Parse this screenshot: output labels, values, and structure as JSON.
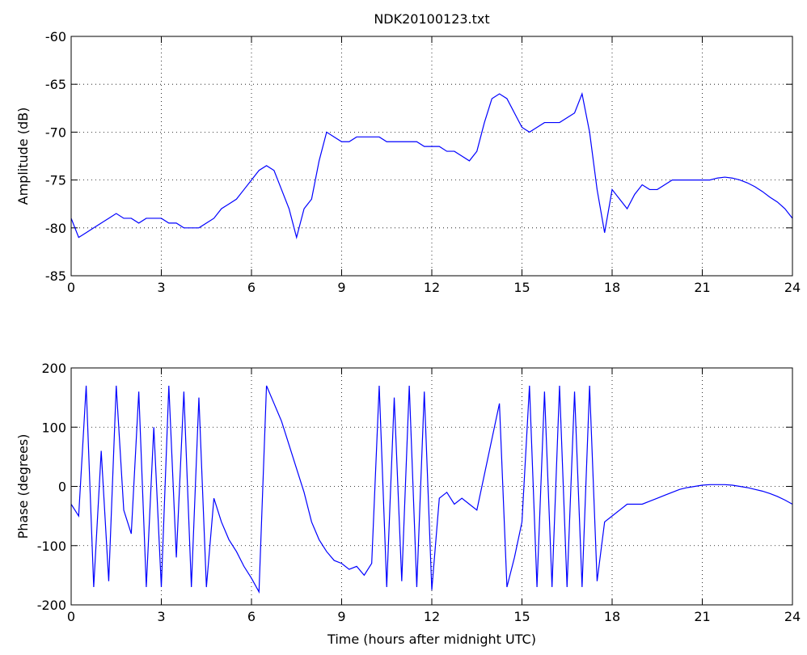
{
  "chart_data": [
    {
      "type": "line",
      "title": "NDK20100123.txt",
      "ylabel": "Amplitude (dB)",
      "color": "#0000ff",
      "grid": true,
      "xlim": [
        0,
        24
      ],
      "xticks": [
        0,
        3,
        6,
        9,
        12,
        15,
        18,
        21,
        24
      ],
      "ylim": [
        -85,
        -60
      ],
      "yticks": [
        -85,
        -80,
        -75,
        -70,
        -65,
        -60
      ],
      "x": [
        0,
        0.25,
        0.5,
        0.75,
        1,
        1.25,
        1.5,
        1.75,
        2,
        2.25,
        2.5,
        2.75,
        3,
        3.25,
        3.5,
        3.75,
        4,
        4.25,
        4.5,
        4.75,
        5,
        5.25,
        5.5,
        5.75,
        6,
        6.25,
        6.5,
        6.75,
        7,
        7.25,
        7.5,
        7.75,
        8,
        8.25,
        8.5,
        8.75,
        9,
        9.25,
        9.5,
        9.75,
        10,
        10.25,
        10.5,
        10.75,
        11,
        11.25,
        11.5,
        11.75,
        12,
        12.25,
        12.5,
        12.75,
        13,
        13.25,
        13.5,
        13.75,
        14,
        14.25,
        14.5,
        14.75,
        15,
        15.25,
        15.5,
        15.75,
        16,
        16.25,
        16.5,
        16.75,
        17,
        17.25,
        17.5,
        17.75,
        18,
        18.25,
        18.5,
        18.75,
        19,
        19.25,
        19.5,
        19.75,
        20,
        20.25,
        20.5,
        20.75,
        21,
        21.25,
        21.5,
        21.75,
        22,
        22.25,
        22.5,
        22.75,
        23,
        23.25,
        23.5,
        23.75,
        24
      ],
      "values": [
        -79,
        -81,
        -80.5,
        -80,
        -79.5,
        -79,
        -78.5,
        -79,
        -79,
        -79.5,
        -79,
        -79,
        -79,
        -79.5,
        -79.5,
        -80,
        -80,
        -80,
        -79.5,
        -79,
        -78,
        -77.5,
        -77,
        -76,
        -75,
        -74,
        -73.5,
        -74,
        -76,
        -78,
        -81,
        -78,
        -77,
        -73,
        -70,
        -70.5,
        -71,
        -71,
        -70.5,
        -70.5,
        -70.5,
        -70.5,
        -71,
        -71,
        -71,
        -71,
        -71,
        -71.5,
        -71.5,
        -71.5,
        -72,
        -72,
        -72.5,
        -73,
        -72,
        -69,
        -66.5,
        -66,
        -66.5,
        -68,
        -69.5,
        -70,
        -69.5,
        -69,
        -69,
        -69,
        -68.5,
        -68,
        -66,
        -70,
        -76,
        -80.5,
        -76,
        -77,
        -78,
        -76.5,
        -75.5,
        -76,
        -76,
        -75.5,
        -75,
        -75,
        -75,
        -75,
        -75,
        -75,
        -74.8,
        -74.7,
        -74.8,
        -75,
        -75.3,
        -75.7,
        -76.2,
        -76.8,
        -77.3,
        -78,
        -79
      ]
    },
    {
      "type": "line",
      "ylabel": "Phase (degrees)",
      "xlabel": "Time (hours after midnight UTC)",
      "color": "#0000ff",
      "grid": true,
      "xlim": [
        0,
        24
      ],
      "xticks": [
        0,
        3,
        6,
        9,
        12,
        15,
        18,
        21,
        24
      ],
      "ylim": [
        -200,
        200
      ],
      "yticks": [
        -200,
        -100,
        0,
        100,
        200
      ],
      "x": [
        0,
        0.25,
        0.5,
        0.75,
        1,
        1.25,
        1.5,
        1.75,
        2,
        2.25,
        2.5,
        2.75,
        3,
        3.25,
        3.5,
        3.75,
        4,
        4.25,
        4.5,
        4.75,
        5,
        5.25,
        5.5,
        5.75,
        6,
        6.25,
        6.5,
        6.75,
        7,
        7.25,
        7.5,
        7.75,
        8,
        8.25,
        8.5,
        8.75,
        9,
        9.25,
        9.5,
        9.75,
        10,
        10.25,
        10.5,
        10.75,
        11,
        11.25,
        11.5,
        11.75,
        12,
        12.25,
        12.5,
        12.75,
        13,
        13.25,
        13.5,
        13.75,
        14,
        14.25,
        14.5,
        14.75,
        15,
        15.25,
        15.5,
        15.75,
        16,
        16.25,
        16.5,
        16.75,
        17,
        17.25,
        17.5,
        17.75,
        18,
        18.25,
        18.5,
        18.75,
        19,
        19.25,
        19.5,
        19.75,
        20,
        20.25,
        20.5,
        20.75,
        21,
        21.25,
        21.5,
        21.75,
        22,
        22.25,
        22.5,
        22.75,
        23,
        23.25,
        23.5,
        23.75,
        24
      ],
      "values": [
        -30,
        -50,
        170,
        -170,
        60,
        -160,
        170,
        -40,
        -80,
        160,
        -170,
        100,
        -170,
        170,
        -120,
        160,
        -170,
        150,
        -170,
        -20,
        -60,
        -90,
        -110,
        -135,
        -155,
        -178,
        170,
        140,
        110,
        70,
        30,
        -10,
        -60,
        -90,
        -110,
        -125,
        -130,
        -140,
        -135,
        -150,
        -130,
        170,
        -170,
        150,
        -160,
        170,
        -170,
        160,
        -175,
        -20,
        -10,
        -30,
        -20,
        -30,
        -40,
        20,
        80,
        140,
        -170,
        -120,
        -60,
        170,
        -170,
        160,
        -170,
        170,
        -170,
        160,
        -170,
        170,
        -160,
        -60,
        -50,
        -40,
        -30,
        -30,
        -30,
        -25,
        -20,
        -15,
        -10,
        -5,
        -2,
        0,
        2,
        3,
        3,
        3,
        2,
        0,
        -2,
        -5,
        -8,
        -12,
        -17,
        -23,
        -30
      ]
    }
  ]
}
